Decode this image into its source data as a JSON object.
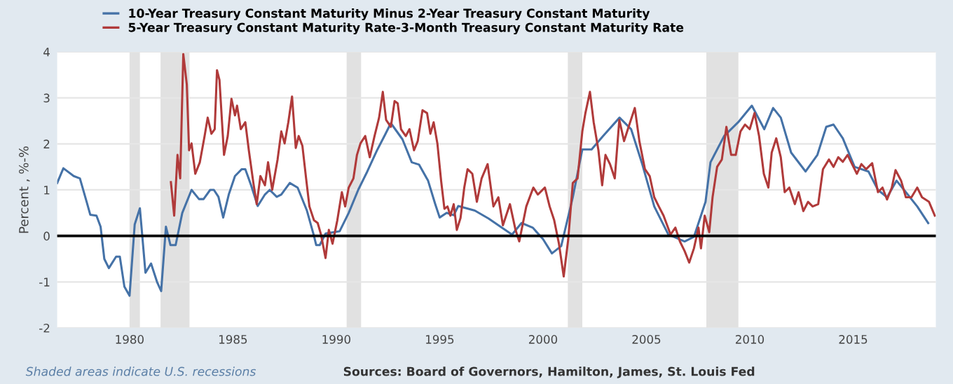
{
  "chart_data": {
    "type": "line",
    "ylabel": "Percent , %-%",
    "legend": "top left",
    "grid": "y",
    "line_style": "solid",
    "marker": "none",
    "xlim": [
      1976.5,
      2019.0
    ],
    "xticks": [
      1980,
      1985,
      1990,
      1995,
      2000,
      2005,
      2010,
      2015
    ],
    "ylim": [
      -2,
      4
    ],
    "yticks": [
      -2,
      -1,
      0,
      1,
      2,
      3,
      4
    ],
    "ref_lines": [
      {
        "axis": "y",
        "value": 0,
        "color": "#000000"
      }
    ],
    "bands": [
      {
        "axis": "x",
        "from": 1980.0,
        "to": 1980.5,
        "color": "#e1e1e1"
      },
      {
        "axis": "x",
        "from": 1981.5,
        "to": 1982.9,
        "color": "#e1e1e1"
      },
      {
        "axis": "x",
        "from": 1990.5,
        "to": 1991.2,
        "color": "#e1e1e1"
      },
      {
        "axis": "x",
        "from": 2001.2,
        "to": 2001.9,
        "color": "#e1e1e1"
      },
      {
        "axis": "x",
        "from": 2007.9,
        "to": 2009.45,
        "color": "#e1e1e1"
      }
    ],
    "annotations": [
      "Shaded areas indicate U.S. recessions",
      "Sources: Board of Governors, Hamilton, James, St. Louis Fed"
    ],
    "series": [
      {
        "name": "10-Year Treasury Constant Maturity Minus 2-Year Treasury Constant Maturity",
        "color": "#4572a7",
        "x": [
          1976.5,
          1976.8,
          1977.3,
          1977.6,
          1977.95,
          1978.1,
          1978.4,
          1978.6,
          1978.78,
          1979.0,
          1979.35,
          1979.53,
          1979.75,
          1980.0,
          1980.25,
          1980.5,
          1980.77,
          1981.04,
          1981.33,
          1981.53,
          1981.76,
          1981.98,
          1982.23,
          1982.55,
          1983.0,
          1983.36,
          1983.58,
          1983.9,
          1984.08,
          1984.3,
          1984.53,
          1984.8,
          1985.1,
          1985.43,
          1985.6,
          1985.88,
          1986.2,
          1986.55,
          1986.78,
          1987.12,
          1987.34,
          1987.75,
          1988.13,
          1988.58,
          1988.92,
          1989.03,
          1989.2,
          1989.48,
          1990.16,
          1990.6,
          1991.06,
          1991.5,
          1991.96,
          1992.36,
          1992.64,
          1993.2,
          1993.65,
          1994.0,
          1994.44,
          1994.78,
          1995.0,
          1995.34,
          1995.68,
          1995.9,
          1996.7,
          1997.36,
          1998.5,
          1998.96,
          1999.5,
          2000.0,
          2000.43,
          2000.88,
          2001.44,
          2001.9,
          2002.35,
          2002.9,
          2003.7,
          2004.26,
          2004.8,
          2005.38,
          2006.06,
          2006.85,
          2007.3,
          2007.86,
          2008.1,
          2008.76,
          2009.44,
          2010.1,
          2010.7,
          2011.13,
          2011.5,
          2012.0,
          2012.7,
          2013.27,
          2013.7,
          2014.05,
          2014.5,
          2015.07,
          2015.74,
          2016.2,
          2016.64,
          2017.1,
          2017.55,
          2018.1,
          2018.63
        ],
        "values": [
          1.15,
          1.47,
          1.3,
          1.25,
          0.7,
          0.46,
          0.44,
          0.2,
          -0.5,
          -0.7,
          -0.45,
          -0.45,
          -1.1,
          -1.3,
          0.25,
          0.6,
          -0.8,
          -0.6,
          -1.0,
          -1.2,
          0.2,
          -0.2,
          -0.2,
          0.5,
          1.0,
          0.8,
          0.8,
          1.0,
          1.0,
          0.85,
          0.4,
          0.9,
          1.3,
          1.45,
          1.45,
          1.1,
          0.65,
          0.9,
          1.0,
          0.85,
          0.9,
          1.15,
          1.05,
          0.55,
          0.0,
          -0.2,
          -0.2,
          0.05,
          0.1,
          0.5,
          1.0,
          1.4,
          1.85,
          2.2,
          2.45,
          2.1,
          1.6,
          1.55,
          1.2,
          0.7,
          0.4,
          0.5,
          0.45,
          0.65,
          0.55,
          0.38,
          0.03,
          0.28,
          0.18,
          -0.07,
          -0.38,
          -0.22,
          0.84,
          1.88,
          1.88,
          2.17,
          2.57,
          2.32,
          1.56,
          0.64,
          0.03,
          -0.12,
          -0.02,
          0.74,
          1.6,
          2.17,
          2.47,
          2.83,
          2.32,
          2.78,
          2.57,
          1.81,
          1.4,
          1.76,
          2.37,
          2.42,
          2.12,
          1.5,
          1.4,
          1.0,
          0.84,
          1.2,
          0.95,
          0.64,
          0.28
        ]
      },
      {
        "name": "5-Year Treasury Constant Maturity Rate-3-Month Treasury Constant Maturity Rate",
        "color": "#b03a3a",
        "x": [
          1982.0,
          1982.16,
          1982.32,
          1982.45,
          1982.6,
          1982.77,
          1982.88,
          1983.0,
          1983.18,
          1983.4,
          1983.63,
          1983.78,
          1983.96,
          1984.12,
          1984.23,
          1984.35,
          1984.57,
          1984.75,
          1984.93,
          1985.1,
          1985.2,
          1985.38,
          1985.6,
          1985.77,
          1985.99,
          1986.15,
          1986.33,
          1986.55,
          1986.7,
          1986.9,
          1987.16,
          1987.34,
          1987.5,
          1987.68,
          1987.86,
          1988.04,
          1988.18,
          1988.36,
          1988.54,
          1988.7,
          1988.92,
          1989.1,
          1989.26,
          1989.48,
          1989.64,
          1989.82,
          1990.05,
          1990.27,
          1990.43,
          1990.6,
          1990.83,
          1991.0,
          1991.17,
          1991.4,
          1991.62,
          1991.85,
          1992.07,
          1992.25,
          1992.41,
          1992.64,
          1992.82,
          1992.97,
          1993.13,
          1993.36,
          1993.54,
          1993.76,
          1993.94,
          1994.17,
          1994.39,
          1994.55,
          1994.71,
          1994.89,
          1995.07,
          1995.23,
          1995.38,
          1995.52,
          1995.68,
          1995.83,
          1996.01,
          1996.19,
          1996.35,
          1996.58,
          1996.8,
          1997.03,
          1997.32,
          1997.6,
          1997.84,
          1998.06,
          1998.4,
          1998.67,
          1998.85,
          1999.19,
          1999.53,
          1999.75,
          2000.09,
          2000.32,
          2000.54,
          2000.77,
          2001.0,
          2001.22,
          2001.44,
          2001.67,
          2001.9,
          2002.05,
          2002.27,
          2002.45,
          2002.68,
          2002.86,
          2003.02,
          2003.24,
          2003.47,
          2003.69,
          2003.92,
          2004.14,
          2004.44,
          2004.66,
          2004.93,
          2005.16,
          2005.38,
          2005.6,
          2005.83,
          2006.17,
          2006.4,
          2006.62,
          2006.85,
          2007.07,
          2007.3,
          2007.52,
          2007.64,
          2007.82,
          2008.04,
          2008.2,
          2008.42,
          2008.65,
          2008.87,
          2009.1,
          2009.32,
          2009.55,
          2009.77,
          2010.0,
          2010.23,
          2010.45,
          2010.68,
          2010.9,
          2011.06,
          2011.28,
          2011.5,
          2011.69,
          2011.91,
          2012.18,
          2012.36,
          2012.59,
          2012.82,
          2013.04,
          2013.31,
          2013.54,
          2013.83,
          2014.05,
          2014.28,
          2014.5,
          2014.73,
          2014.95,
          2015.18,
          2015.4,
          2015.63,
          2015.92,
          2016.2,
          2016.42,
          2016.64,
          2016.87,
          2017.05,
          2017.32,
          2017.55,
          2017.82,
          2018.1,
          2018.33,
          2018.67,
          2018.95
        ],
        "values": [
          1.17,
          0.44,
          1.76,
          1.25,
          3.95,
          3.29,
          1.86,
          2.01,
          1.35,
          1.6,
          2.17,
          2.57,
          2.22,
          2.32,
          3.6,
          3.39,
          1.76,
          2.17,
          2.98,
          2.62,
          2.83,
          2.32,
          2.47,
          1.86,
          1.15,
          0.69,
          1.3,
          1.1,
          1.6,
          1.0,
          1.66,
          2.27,
          2.01,
          2.47,
          3.03,
          1.91,
          2.17,
          1.96,
          1.25,
          0.64,
          0.34,
          0.28,
          0.03,
          -0.48,
          0.13,
          -0.17,
          0.34,
          0.95,
          0.64,
          1.05,
          1.25,
          1.76,
          2.01,
          2.17,
          1.71,
          2.17,
          2.57,
          3.13,
          2.52,
          2.37,
          2.93,
          2.88,
          2.32,
          2.17,
          2.32,
          1.86,
          2.06,
          2.73,
          2.67,
          2.22,
          2.47,
          2.01,
          1.2,
          0.59,
          0.64,
          0.44,
          0.69,
          0.13,
          0.39,
          1.05,
          1.45,
          1.35,
          0.74,
          1.25,
          1.56,
          0.64,
          0.84,
          0.23,
          0.69,
          0.13,
          -0.12,
          0.64,
          1.05,
          0.9,
          1.05,
          0.64,
          0.34,
          -0.17,
          -0.88,
          -0.07,
          1.15,
          1.25,
          2.27,
          2.67,
          3.13,
          2.47,
          1.86,
          1.1,
          1.76,
          1.56,
          1.25,
          2.52,
          2.06,
          2.37,
          2.78,
          2.06,
          1.45,
          1.3,
          0.84,
          0.64,
          0.44,
          0.03,
          0.18,
          -0.12,
          -0.33,
          -0.58,
          -0.27,
          0.18,
          -0.27,
          0.44,
          0.08,
          0.84,
          1.5,
          1.66,
          2.37,
          1.76,
          1.76,
          2.27,
          2.42,
          2.32,
          2.67,
          2.17,
          1.35,
          1.05,
          1.81,
          2.12,
          1.71,
          0.95,
          1.05,
          0.69,
          0.95,
          0.54,
          0.74,
          0.64,
          0.69,
          1.45,
          1.66,
          1.5,
          1.71,
          1.61,
          1.76,
          1.56,
          1.35,
          1.56,
          1.45,
          1.58,
          0.95,
          1.05,
          0.79,
          1.05,
          1.43,
          1.2,
          0.84,
          0.84,
          1.05,
          0.84,
          0.74,
          0.44
        ]
      }
    ]
  }
}
